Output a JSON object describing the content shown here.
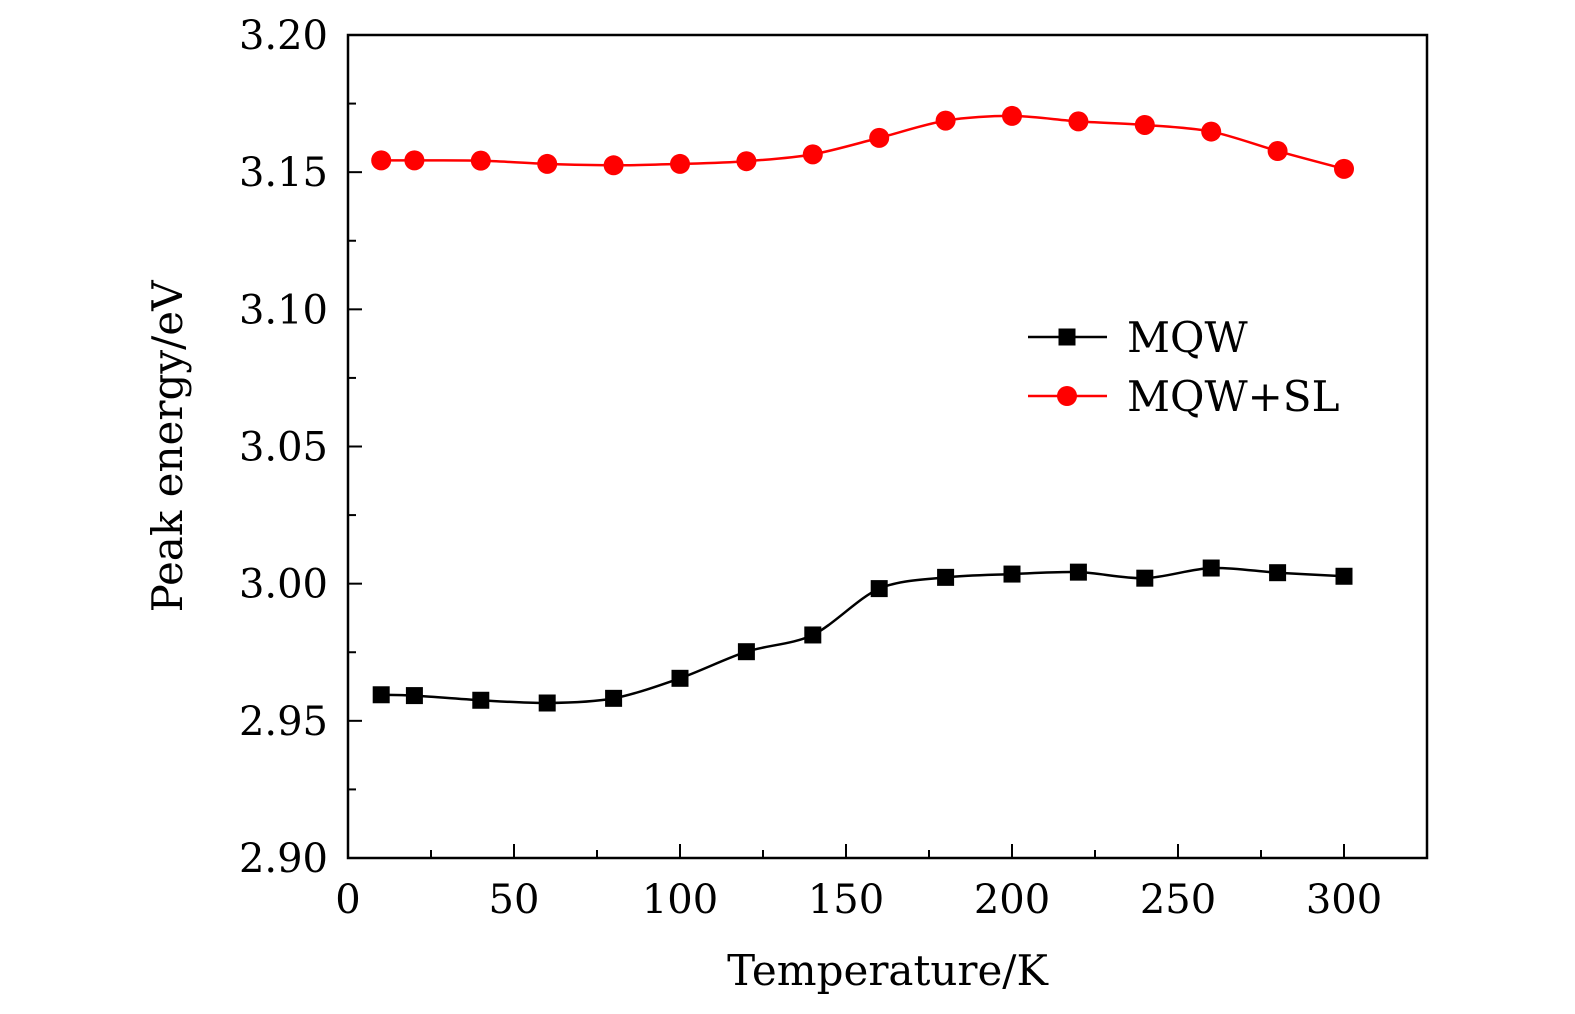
{
  "chart_data": {
    "type": "line",
    "title": "",
    "xlabel": "Temperature/K",
    "ylabel": "Peak energy/eV",
    "xlim": [
      0,
      325
    ],
    "ylim": [
      2.9,
      3.2
    ],
    "x_ticks": [
      0,
      50,
      100,
      150,
      200,
      250,
      300
    ],
    "x_tick_labels": [
      "0",
      "50",
      "100",
      "150",
      "200",
      "250",
      "300"
    ],
    "x_minor_ticks": [
      25,
      75,
      125,
      175,
      225,
      275
    ],
    "y_ticks": [
      2.9,
      2.95,
      3.0,
      3.05,
      3.1,
      3.15,
      3.2
    ],
    "y_tick_labels": [
      "2.90",
      "2.95",
      "3.00",
      "3.05",
      "3.10",
      "3.15",
      "3.20"
    ],
    "y_minor_ticks": [
      2.925,
      2.975,
      3.025,
      3.075,
      3.125,
      3.175
    ],
    "grid": false,
    "legend_position": "right",
    "x": [
      10,
      20,
      40,
      60,
      80,
      100,
      120,
      140,
      160,
      180,
      200,
      220,
      240,
      260,
      280,
      300
    ],
    "series": [
      {
        "name": "MQW",
        "color": "#000000",
        "marker": "square",
        "values": [
          2.9595,
          2.9592,
          2.9575,
          2.9565,
          2.9582,
          2.9655,
          2.9752,
          2.9813,
          2.9982,
          3.0023,
          3.0035,
          3.0042,
          3.002,
          3.0057,
          3.004,
          3.0027
        ]
      },
      {
        "name": "MQW+SL",
        "color": "#ff0000",
        "marker": "circle",
        "values": [
          3.1543,
          3.1543,
          3.1542,
          3.153,
          3.1525,
          3.153,
          3.154,
          3.1565,
          3.1625,
          3.1688,
          3.1705,
          3.1685,
          3.1672,
          3.1648,
          3.1577,
          3.1512
        ]
      }
    ]
  }
}
